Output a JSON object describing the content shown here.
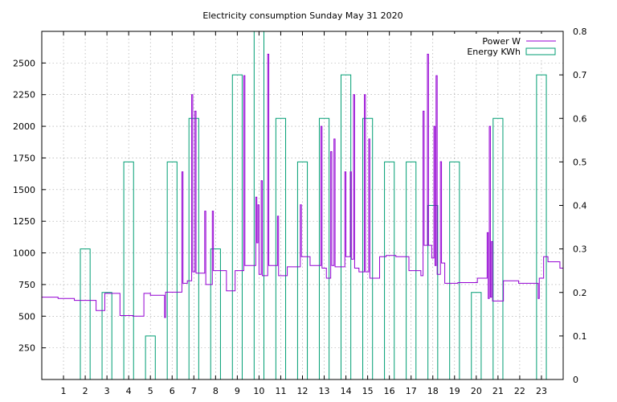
{
  "chart_data": {
    "type": "line",
    "title": "Electricity consumption Sunday May 31 2020",
    "xlabel": "",
    "ylabel": "",
    "y2label": "",
    "xlim": [
      0,
      24
    ],
    "ylim": [
      0,
      2750
    ],
    "y2lim": [
      0,
      0.8
    ],
    "x_ticks": [
      1,
      2,
      3,
      4,
      5,
      6,
      7,
      8,
      9,
      10,
      11,
      12,
      13,
      14,
      15,
      16,
      17,
      18,
      19,
      20,
      21,
      22,
      23
    ],
    "y_ticks": [
      250,
      500,
      750,
      1000,
      1250,
      1500,
      1750,
      2000,
      2250,
      2500
    ],
    "y2_ticks": [
      0,
      0.1,
      0.2,
      0.3,
      0.4,
      0.5,
      0.6,
      0.7,
      0.8
    ],
    "grid": true,
    "legend_position": "top-right",
    "series": [
      {
        "name": "Power W",
        "color": "#9400d3",
        "axis": "y",
        "points": [
          [
            0,
            650
          ],
          [
            0.75,
            650
          ],
          [
            0.75,
            640
          ],
          [
            1.5,
            640
          ],
          [
            1.5,
            625
          ],
          [
            2.5,
            625
          ],
          [
            2.5,
            545
          ],
          [
            2.9,
            545
          ],
          [
            2.9,
            680
          ],
          [
            3.6,
            680
          ],
          [
            3.6,
            505
          ],
          [
            4.2,
            505
          ],
          [
            4.2,
            500
          ],
          [
            4.7,
            500
          ],
          [
            4.7,
            680
          ],
          [
            5.0,
            680
          ],
          [
            5.0,
            665
          ],
          [
            5.65,
            665
          ],
          [
            5.65,
            490
          ],
          [
            5.7,
            490
          ],
          [
            5.7,
            690
          ],
          [
            6.45,
            690
          ],
          [
            6.45,
            1640
          ],
          [
            6.5,
            1640
          ],
          [
            6.5,
            760
          ],
          [
            6.7,
            760
          ],
          [
            6.7,
            780
          ],
          [
            6.9,
            780
          ],
          [
            6.9,
            2250
          ],
          [
            6.95,
            2250
          ],
          [
            6.95,
            850
          ],
          [
            7.05,
            850
          ],
          [
            7.05,
            2120
          ],
          [
            7.1,
            2120
          ],
          [
            7.1,
            840
          ],
          [
            7.5,
            840
          ],
          [
            7.5,
            1330
          ],
          [
            7.55,
            1330
          ],
          [
            7.55,
            750
          ],
          [
            7.85,
            750
          ],
          [
            7.85,
            1330
          ],
          [
            7.9,
            1330
          ],
          [
            7.9,
            860
          ],
          [
            8.5,
            860
          ],
          [
            8.5,
            700
          ],
          [
            8.9,
            700
          ],
          [
            8.9,
            860
          ],
          [
            9.3,
            860
          ],
          [
            9.3,
            2400
          ],
          [
            9.35,
            2400
          ],
          [
            9.35,
            900
          ],
          [
            9.85,
            900
          ],
          [
            9.85,
            1440
          ],
          [
            9.9,
            1440
          ],
          [
            9.9,
            1080
          ],
          [
            9.95,
            1080
          ],
          [
            9.95,
            1380
          ],
          [
            10.0,
            1380
          ],
          [
            10.0,
            830
          ],
          [
            10.1,
            830
          ],
          [
            10.1,
            1570
          ],
          [
            10.15,
            1570
          ],
          [
            10.15,
            820
          ],
          [
            10.4,
            820
          ],
          [
            10.4,
            2570
          ],
          [
            10.45,
            2570
          ],
          [
            10.45,
            900
          ],
          [
            10.85,
            900
          ],
          [
            10.85,
            1290
          ],
          [
            10.9,
            1290
          ],
          [
            10.9,
            820
          ],
          [
            11.3,
            820
          ],
          [
            11.3,
            890
          ],
          [
            11.9,
            890
          ],
          [
            11.9,
            1380
          ],
          [
            11.95,
            1380
          ],
          [
            11.95,
            970
          ],
          [
            12.35,
            970
          ],
          [
            12.35,
            900
          ],
          [
            12.85,
            900
          ],
          [
            12.85,
            2000
          ],
          [
            12.9,
            2000
          ],
          [
            12.9,
            880
          ],
          [
            13.1,
            880
          ],
          [
            13.1,
            800
          ],
          [
            13.3,
            800
          ],
          [
            13.3,
            1800
          ],
          [
            13.35,
            1800
          ],
          [
            13.35,
            900
          ],
          [
            13.45,
            900
          ],
          [
            13.45,
            1900
          ],
          [
            13.5,
            1900
          ],
          [
            13.5,
            890
          ],
          [
            13.95,
            890
          ],
          [
            13.95,
            1640
          ],
          [
            14.0,
            1640
          ],
          [
            14.0,
            970
          ],
          [
            14.2,
            970
          ],
          [
            14.2,
            1640
          ],
          [
            14.25,
            1640
          ],
          [
            14.25,
            950
          ],
          [
            14.35,
            950
          ],
          [
            14.35,
            2250
          ],
          [
            14.4,
            2250
          ],
          [
            14.4,
            880
          ],
          [
            14.6,
            880
          ],
          [
            14.6,
            850
          ],
          [
            14.85,
            850
          ],
          [
            14.85,
            2250
          ],
          [
            14.9,
            2250
          ],
          [
            14.9,
            850
          ],
          [
            15.05,
            850
          ],
          [
            15.05,
            1900
          ],
          [
            15.1,
            1900
          ],
          [
            15.1,
            800
          ],
          [
            15.55,
            800
          ],
          [
            15.55,
            970
          ],
          [
            15.85,
            970
          ],
          [
            15.85,
            980
          ],
          [
            16.3,
            980
          ],
          [
            16.3,
            970
          ],
          [
            16.9,
            970
          ],
          [
            16.9,
            860
          ],
          [
            17.45,
            860
          ],
          [
            17.45,
            820
          ],
          [
            17.55,
            820
          ],
          [
            17.55,
            2120
          ],
          [
            17.6,
            2120
          ],
          [
            17.6,
            1060
          ],
          [
            17.75,
            1060
          ],
          [
            17.75,
            2570
          ],
          [
            17.8,
            2570
          ],
          [
            17.8,
            1060
          ],
          [
            17.95,
            1060
          ],
          [
            17.95,
            960
          ],
          [
            18.05,
            960
          ],
          [
            18.05,
            2000
          ],
          [
            18.1,
            2000
          ],
          [
            18.1,
            900
          ],
          [
            18.15,
            900
          ],
          [
            18.15,
            2400
          ],
          [
            18.2,
            2400
          ],
          [
            18.2,
            830
          ],
          [
            18.35,
            830
          ],
          [
            18.35,
            1720
          ],
          [
            18.4,
            1720
          ],
          [
            18.4,
            920
          ],
          [
            18.55,
            920
          ],
          [
            18.55,
            760
          ],
          [
            19.15,
            760
          ],
          [
            19.15,
            765
          ],
          [
            20.05,
            765
          ],
          [
            20.05,
            800
          ],
          [
            20.5,
            800
          ],
          [
            20.5,
            1160
          ],
          [
            20.55,
            1160
          ],
          [
            20.55,
            640
          ],
          [
            20.6,
            640
          ],
          [
            20.6,
            2000
          ],
          [
            20.65,
            2000
          ],
          [
            20.65,
            650
          ],
          [
            20.7,
            650
          ],
          [
            20.7,
            1090
          ],
          [
            20.75,
            1090
          ],
          [
            20.75,
            620
          ],
          [
            21.25,
            620
          ],
          [
            21.25,
            780
          ],
          [
            21.95,
            780
          ],
          [
            21.95,
            760
          ],
          [
            22.85,
            760
          ],
          [
            22.85,
            640
          ],
          [
            22.9,
            640
          ],
          [
            22.9,
            800
          ],
          [
            23.1,
            800
          ],
          [
            23.1,
            970
          ],
          [
            23.3,
            970
          ],
          [
            23.3,
            930
          ],
          [
            23.85,
            930
          ],
          [
            23.85,
            880
          ],
          [
            24,
            880
          ]
        ]
      },
      {
        "name": "Energy KWh",
        "color": "#009e73",
        "axis": "y2",
        "bars": [
          {
            "x": 2,
            "value": 0.3
          },
          {
            "x": 3,
            "value": 0.2
          },
          {
            "x": 4,
            "value": 0.5
          },
          {
            "x": 5,
            "value": 0.1
          },
          {
            "x": 6,
            "value": 0.5
          },
          {
            "x": 7,
            "value": 0.6
          },
          {
            "x": 8,
            "value": 0.3
          },
          {
            "x": 9,
            "value": 0.7
          },
          {
            "x": 10,
            "value": 0.8
          },
          {
            "x": 11,
            "value": 0.6
          },
          {
            "x": 12,
            "value": 0.5
          },
          {
            "x": 13,
            "value": 0.6
          },
          {
            "x": 14,
            "value": 0.7
          },
          {
            "x": 15,
            "value": 0.6
          },
          {
            "x": 16,
            "value": 0.5
          },
          {
            "x": 17,
            "value": 0.5
          },
          {
            "x": 18,
            "value": 0.4
          },
          {
            "x": 19,
            "value": 0.5
          },
          {
            "x": 20,
            "value": 0.2
          },
          {
            "x": 21,
            "value": 0.6
          },
          {
            "x": 23,
            "value": 0.7
          }
        ]
      }
    ]
  }
}
